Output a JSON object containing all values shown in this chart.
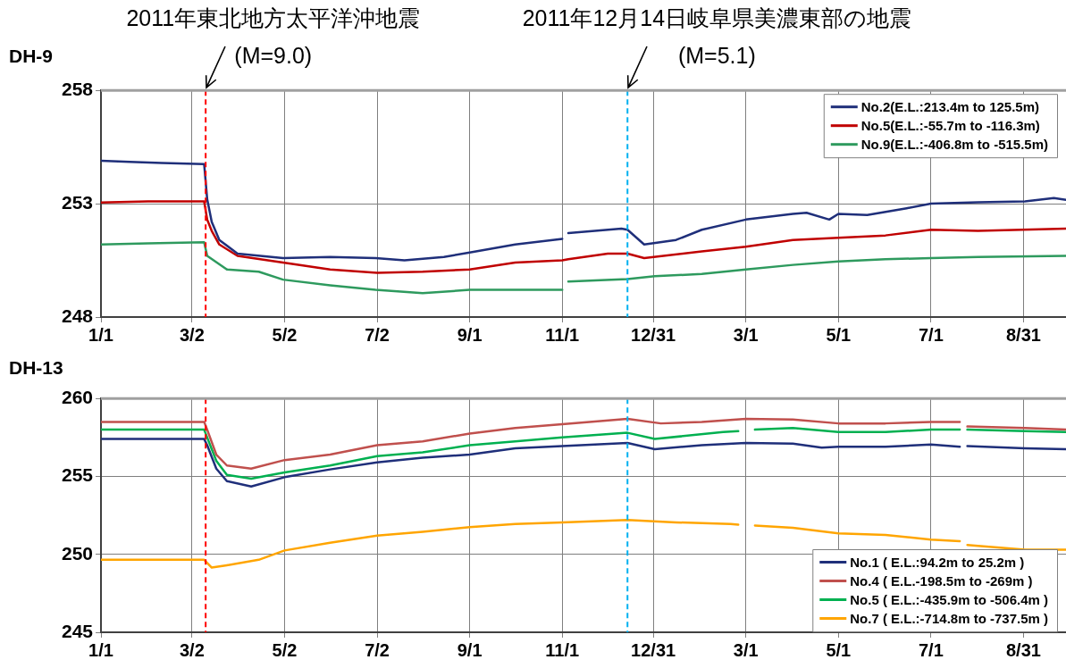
{
  "chart_data": [
    {
      "type": "line",
      "title": "DH-9",
      "xlim": [
        "2011-01-01",
        "2012-09-28"
      ],
      "xticks": [
        {
          "value": "2011-01-01",
          "label": "1/1"
        },
        {
          "value": "2011-03-02",
          "label": "3/2"
        },
        {
          "value": "2011-05-02",
          "label": "5/2"
        },
        {
          "value": "2011-07-02",
          "label": "7/2"
        },
        {
          "value": "2011-09-01",
          "label": "9/1"
        },
        {
          "value": "2011-11-01",
          "label": "11/1"
        },
        {
          "value": "2011-12-31",
          "label": "12/31"
        },
        {
          "value": "2012-03-01",
          "label": "3/1"
        },
        {
          "value": "2012-05-01",
          "label": "5/1"
        },
        {
          "value": "2012-07-01",
          "label": "7/1"
        },
        {
          "value": "2012-08-31",
          "label": "8/31"
        }
      ],
      "ylim": [
        248,
        258
      ],
      "yticks": [
        248,
        253,
        258
      ],
      "grid": true,
      "legend": "top right",
      "marker": "none",
      "line_style": "solid",
      "ref_lines": [
        {
          "axis": "x",
          "value": "2011-03-11",
          "label": "2011年東北地方太平洋沖地震\n(M=9.0)",
          "color": "#ff0000",
          "line_style": "dashed"
        },
        {
          "axis": "x",
          "value": "2011-12-14",
          "label": "2011年12月14日岐阜県美濃東部の地震\n(M=5.1)",
          "color": "#00b0f0",
          "line_style": "dashed"
        }
      ],
      "series": [
        {
          "name": "No.2(E.L.:213.4m to 125.5m)",
          "color": "#1f2f7a",
          "x": [
            "2011-01-01",
            "2011-01-20",
            "2011-02-10",
            "2011-03-10",
            "2011-03-12",
            "2011-03-15",
            "2011-03-20",
            "2011-04-01",
            "2011-05-01",
            "2011-06-01",
            "2011-07-01",
            "2011-07-20",
            "2011-08-15",
            "2011-09-01",
            "2011-10-01",
            "2011-11-01",
            "2011-11-03",
            "2011-11-05",
            "2011-12-10",
            "2011-12-14",
            "2011-12-25",
            "2012-01-15",
            "2012-02-01",
            "2012-03-01",
            "2012-04-01",
            "2012-04-10",
            "2012-04-25",
            "2012-05-01",
            "2012-05-20",
            "2012-06-15",
            "2012-07-01",
            "2012-08-01",
            "2012-09-01",
            "2012-09-20",
            "2012-09-28"
          ],
          "values": [
            254.9,
            254.85,
            254.8,
            254.75,
            253.2,
            252.2,
            251.4,
            250.8,
            250.6,
            250.65,
            250.6,
            250.5,
            250.65,
            250.85,
            251.2,
            251.45,
            null,
            251.7,
            251.9,
            251.85,
            251.2,
            251.4,
            251.85,
            252.3,
            252.55,
            252.6,
            252.3,
            252.55,
            252.5,
            252.8,
            253.0,
            253.06,
            253.1,
            253.25,
            253.17
          ]
        },
        {
          "name": "No.5(E.L.:-55.7m to -116.3m)",
          "color": "#c00000",
          "x": [
            "2011-01-01",
            "2011-02-01",
            "2011-03-10",
            "2011-03-12",
            "2011-03-15",
            "2011-03-20",
            "2011-04-01",
            "2011-05-01",
            "2011-06-01",
            "2011-07-02",
            "2011-08-01",
            "2011-09-01",
            "2011-10-01",
            "2011-11-01",
            "2011-11-05",
            "2011-12-01",
            "2011-12-14",
            "2011-12-25",
            "2012-02-01",
            "2012-03-01",
            "2012-04-01",
            "2012-05-01",
            "2012-06-01",
            "2012-07-01",
            "2012-08-01",
            "2012-09-28"
          ],
          "values": [
            253.05,
            253.1,
            253.1,
            252.3,
            251.8,
            251.2,
            250.7,
            250.4,
            250.1,
            249.95,
            250.0,
            250.1,
            250.4,
            250.5,
            250.55,
            250.8,
            250.8,
            250.6,
            250.9,
            251.1,
            251.4,
            251.5,
            251.6,
            251.85,
            251.8,
            251.9
          ]
        },
        {
          "name": "No.9(E.L.:-406.8m to -515.5m)",
          "color": "#2e9a5e",
          "x": [
            "2011-01-01",
            "2011-02-01",
            "2011-03-10",
            "2011-03-12",
            "2011-03-25",
            "2011-04-15",
            "2011-05-01",
            "2011-06-01",
            "2011-07-01",
            "2011-08-01",
            "2011-09-01",
            "2011-10-01",
            "2011-11-01",
            "2011-11-03",
            "2011-11-05",
            "2011-12-14",
            "2012-01-01",
            "2012-02-01",
            "2012-03-01",
            "2012-04-01",
            "2012-05-01",
            "2012-06-01",
            "2012-07-01",
            "2012-08-01",
            "2012-09-28"
          ],
          "values": [
            251.2,
            251.25,
            251.3,
            250.7,
            250.1,
            250.0,
            249.65,
            249.4,
            249.2,
            249.05,
            249.2,
            249.2,
            249.2,
            null,
            249.57,
            249.67,
            249.8,
            249.9,
            250.1,
            250.3,
            250.45,
            250.55,
            250.6,
            250.65,
            250.7
          ]
        }
      ]
    },
    {
      "type": "line",
      "title": "DH-13",
      "xlim": [
        "2011-01-01",
        "2012-09-28"
      ],
      "xticks": [
        {
          "value": "2011-01-01",
          "label": "1/1"
        },
        {
          "value": "2011-03-02",
          "label": "3/2"
        },
        {
          "value": "2011-05-02",
          "label": "5/2"
        },
        {
          "value": "2011-07-02",
          "label": "7/2"
        },
        {
          "value": "2011-09-01",
          "label": "9/1"
        },
        {
          "value": "2011-11-01",
          "label": "11/1"
        },
        {
          "value": "2011-12-31",
          "label": "12/31"
        },
        {
          "value": "2012-03-01",
          "label": "3/1"
        },
        {
          "value": "2012-05-01",
          "label": "5/1"
        },
        {
          "value": "2012-07-01",
          "label": "7/1"
        },
        {
          "value": "2012-08-31",
          "label": "8/31"
        }
      ],
      "ylim": [
        245,
        260
      ],
      "yticks": [
        245,
        250,
        255,
        260
      ],
      "grid": true,
      "legend": "bottom right",
      "marker": "none",
      "line_style": "solid",
      "ref_lines": [
        {
          "axis": "x",
          "value": "2011-03-11",
          "color": "#ff0000",
          "line_style": "dashed"
        },
        {
          "axis": "x",
          "value": "2011-12-14",
          "color": "#00b0f0",
          "line_style": "dashed"
        }
      ],
      "series": [
        {
          "name": "No.1 ( E.L.:94.2m to 25.2m )",
          "color": "#1f2f7a",
          "x": [
            "2011-01-01",
            "2011-03-10",
            "2011-03-12",
            "2011-03-18",
            "2011-03-25",
            "2011-04-10",
            "2011-05-02",
            "2011-06-01",
            "2011-07-02",
            "2011-08-01",
            "2011-09-01",
            "2011-10-01",
            "2011-11-01",
            "2011-12-14",
            "2012-01-01",
            "2012-02-01",
            "2012-03-01",
            "2012-04-01",
            "2012-04-20",
            "2012-05-01",
            "2012-06-01",
            "2012-07-01",
            "2012-07-20",
            "2012-07-22",
            "2012-07-25",
            "2012-09-01",
            "2012-09-28"
          ],
          "values": [
            257.4,
            257.4,
            257.0,
            255.5,
            254.7,
            254.35,
            254.95,
            255.45,
            255.9,
            256.2,
            256.4,
            256.8,
            256.95,
            257.15,
            256.75,
            257.0,
            257.15,
            257.1,
            256.85,
            256.9,
            256.9,
            257.05,
            256.9,
            null,
            256.95,
            256.8,
            256.75
          ]
        },
        {
          "name": "No.4 ( E.L.-198.5m to -269m )",
          "color": "#c0504d",
          "x": [
            "2011-01-01",
            "2011-03-10",
            "2011-03-12",
            "2011-03-18",
            "2011-03-25",
            "2011-04-10",
            "2011-05-02",
            "2011-06-01",
            "2011-07-02",
            "2011-08-01",
            "2011-09-01",
            "2011-10-01",
            "2011-11-01",
            "2011-12-14",
            "2012-01-05",
            "2012-02-01",
            "2012-03-01",
            "2012-04-01",
            "2012-05-01",
            "2012-06-01",
            "2012-07-01",
            "2012-07-20",
            "2012-07-22",
            "2012-07-25",
            "2012-09-01",
            "2012-09-28"
          ],
          "values": [
            258.5,
            258.5,
            258.0,
            256.4,
            255.7,
            255.5,
            256.05,
            256.4,
            257.0,
            257.25,
            257.75,
            258.1,
            258.35,
            258.7,
            258.4,
            258.5,
            258.7,
            258.65,
            258.4,
            258.4,
            258.5,
            258.5,
            null,
            258.2,
            258.1,
            258.0
          ]
        },
        {
          "name": "No.5 ( E.L.:-435.9m to -506.4m )",
          "color": "#00b050",
          "x": [
            "2011-01-01",
            "2011-03-10",
            "2011-03-12",
            "2011-03-18",
            "2011-03-25",
            "2011-04-10",
            "2011-05-02",
            "2011-06-01",
            "2011-07-02",
            "2011-08-01",
            "2011-09-01",
            "2011-10-01",
            "2011-11-01",
            "2011-12-14",
            "2012-01-01",
            "2012-02-15",
            "2012-02-25",
            "2012-03-01",
            "2012-03-07",
            "2012-04-01",
            "2012-05-01",
            "2012-06-01",
            "2012-07-01",
            "2012-07-20",
            "2012-07-22",
            "2012-07-25",
            "2012-09-01",
            "2012-09-28"
          ],
          "values": [
            258.0,
            258.0,
            257.5,
            256.0,
            255.1,
            254.85,
            255.25,
            255.7,
            256.3,
            256.55,
            257.0,
            257.25,
            257.5,
            257.8,
            257.4,
            257.85,
            257.9,
            null,
            258.0,
            258.1,
            257.85,
            257.85,
            258.0,
            258.0,
            null,
            258.0,
            257.9,
            257.85
          ]
        },
        {
          "name": "No.7 ( E.L.:-714.8m to -737.5m )",
          "color": "#ffa500",
          "x": [
            "2011-01-01",
            "2011-03-10",
            "2011-03-15",
            "2011-03-25",
            "2011-04-15",
            "2011-05-02",
            "2011-06-01",
            "2011-07-02",
            "2011-08-01",
            "2011-09-01",
            "2011-10-01",
            "2011-11-01",
            "2011-12-14",
            "2012-01-15",
            "2012-02-20",
            "2012-02-25",
            "2012-03-01",
            "2012-03-07",
            "2012-04-01",
            "2012-05-01",
            "2012-06-01",
            "2012-07-01",
            "2012-07-20",
            "2012-07-22",
            "2012-07-25",
            "2012-08-01",
            "2012-09-01",
            "2012-09-28"
          ],
          "values": [
            249.65,
            249.65,
            249.15,
            249.3,
            249.65,
            250.25,
            250.75,
            251.2,
            251.45,
            251.75,
            251.95,
            252.05,
            252.2,
            252.05,
            251.95,
            251.9,
            null,
            251.85,
            251.7,
            251.35,
            251.25,
            250.95,
            250.85,
            null,
            250.6,
            250.55,
            250.3,
            250.3
          ]
        }
      ]
    }
  ]
}
